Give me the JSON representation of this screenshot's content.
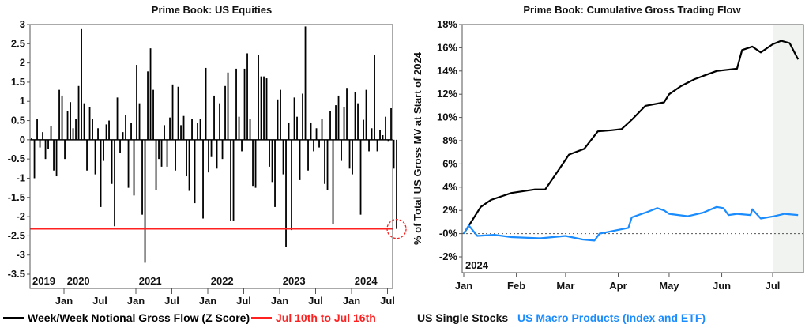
{
  "chart_data": [
    {
      "type": "bar",
      "title": "Prime Book: US Equities",
      "ylim": [
        -3.87,
        3
      ],
      "yticks": [
        "3",
        "2.5",
        "2",
        "1.5",
        "1",
        "0.5",
        "0",
        "-0.5",
        "-1",
        "-1.5",
        "-2",
        "-2.5",
        "-3",
        "-3.5"
      ],
      "ytick_values": [
        3,
        2.5,
        2,
        1.5,
        1,
        0.5,
        0,
        -0.5,
        -1,
        -1.5,
        -2,
        -2.5,
        -3,
        -3.5
      ],
      "xticks": [
        "Jan",
        "Jul",
        "Jan",
        "Jul",
        "Jan",
        "Jul",
        "Jan",
        "Jul",
        "Jan",
        "Jul"
      ],
      "xtick_values": [
        2020,
        2020.5,
        2021,
        2021.5,
        2022,
        2022.5,
        2023,
        2023.5,
        2024,
        2024.5
      ],
      "year_labels": [
        "2019",
        "2020",
        "2021",
        "2022",
        "2023",
        "2024"
      ],
      "year_label_values": [
        2019.72,
        2020.2,
        2021.2,
        2022.2,
        2023.2,
        2024.2
      ],
      "x_start": 2019.55,
      "x_step_years": 0.03846,
      "values": [
        0.05,
        -1.0,
        0.55,
        -0.2,
        0.2,
        -0.5,
        -0.25,
        0.35,
        -0.8,
        -0.95,
        1.3,
        1.15,
        -0.5,
        0.75,
        0.98,
        0.3,
        0.55,
        1.4,
        2.88,
        0.95,
        -0.8,
        0.85,
        0.55,
        -0.9,
        0.3,
        -1.75,
        -0.55,
        0.4,
        0.5,
        -1.15,
        -2.25,
        1.1,
        -0.35,
        0.2,
        0.65,
        -1.25,
        0.44,
        -1.45,
        1.95,
        0.95,
        -1.95,
        -3.2,
        1.78,
        2.38,
        1.3,
        -1.3,
        -0.5,
        -0.7,
        0.38,
        -0.7,
        0.58,
        1.44,
        -0.8,
        1.38,
        0.38,
        0.62,
        -0.95,
        -1.33,
        0.55,
        -1.65,
        0.43,
        0.55,
        -2.05,
        1.87,
        -0.85,
        -0.45,
        1.15,
        -0.75,
        0.95,
        -0.5,
        1.4,
        1.75,
        -2.1,
        -2.1,
        1.85,
        0.6,
        -0.3,
        1.85,
        2.25,
        0.55,
        -1.2,
        -1.25,
        2.2,
        1.65,
        1.65,
        1.6,
        -0.7,
        -1.1,
        -1.75,
        1.05,
        1.3,
        -0.9,
        -2.8,
        0.45,
        -2.35,
        1.1,
        0.6,
        -1.05,
        1.2,
        2.95,
        -0.8,
        0.45,
        -0.3,
        0.3,
        -0.2,
        0.55,
        -1.15,
        -1.3,
        0.75,
        -2.2,
        0.9,
        1.15,
        -0.55,
        0.85,
        1.35,
        -0.75,
        -0.9,
        1.25,
        0.95,
        -1.95,
        0.52,
        1.3,
        -0.3,
        0.3,
        2.2,
        -0.3,
        0.25,
        0.12,
        0.6,
        -0.05,
        0.82,
        -0.75,
        -2.32
      ],
      "reference_line": {
        "name": "Jul 10th to Jul 16th",
        "value": -2.32,
        "color": "#ff2020"
      },
      "series_name": "Week/Week Notional Gross Flow (Z Score)",
      "bar_color": "#000000",
      "highlight": "dashed red circle on latest value",
      "grid": false,
      "legend": "bottom"
    },
    {
      "type": "line",
      "title": "Prime Book: Cumulative Gross Trading Flow",
      "ylabel": "% of Total US Gross MV at Start of 2024",
      "ylim": [
        -3.36,
        18
      ],
      "yticks": [
        "18%",
        "16%",
        "14%",
        "12%",
        "10%",
        "8%",
        "6%",
        "4%",
        "2%",
        "-0%",
        "-2%"
      ],
      "ytick_values": [
        18,
        16,
        14,
        12,
        10,
        8,
        6,
        4,
        2,
        0,
        -2
      ],
      "xticks": [
        "Jan",
        "Feb",
        "Mar",
        "Apr",
        "May",
        "Jun",
        "Jul"
      ],
      "xtick_dates": [
        "2024-01-01",
        "2024-02-01",
        "2024-03-01",
        "2024-04-01",
        "2024-05-01",
        "2024-06-01",
        "2024-07-01"
      ],
      "corner_label": "2024",
      "shaded_from": "2024-07-01",
      "zero_line": "dotted",
      "legend": "bottom",
      "series": [
        {
          "name": "US Single Stocks",
          "color": "#000000",
          "x": [
            "2024-01-01",
            "2024-01-11",
            "2024-01-17",
            "2024-01-29",
            "2024-02-12",
            "2024-02-18",
            "2024-02-26",
            "2024-03-03",
            "2024-03-12",
            "2024-03-20",
            "2024-03-28",
            "2024-04-03",
            "2024-04-09",
            "2024-04-17",
            "2024-04-28",
            "2024-05-01",
            "2024-05-08",
            "2024-05-16",
            "2024-05-29",
            "2024-06-10",
            "2024-06-13",
            "2024-06-19",
            "2024-06-24",
            "2024-07-01",
            "2024-07-06",
            "2024-07-11",
            "2024-07-16"
          ],
          "y": [
            0,
            2.3,
            2.9,
            3.5,
            3.8,
            3.8,
            5.5,
            6.8,
            7.3,
            8.8,
            8.9,
            9.0,
            9.8,
            11.0,
            11.3,
            12.0,
            12.7,
            13.3,
            14.0,
            14.2,
            15.8,
            16.1,
            15.6,
            16.3,
            16.6,
            16.4,
            15.0
          ]
        },
        {
          "name": "US Macro Products (Index and ETF)",
          "color": "#1a8cff",
          "x": [
            "2024-01-01",
            "2024-01-04",
            "2024-01-09",
            "2024-01-19",
            "2024-01-29",
            "2024-02-15",
            "2024-03-01",
            "2024-03-11",
            "2024-03-18",
            "2024-03-21",
            "2024-04-07",
            "2024-04-09",
            "2024-04-17",
            "2024-04-24",
            "2024-04-28",
            "2024-05-01",
            "2024-05-12",
            "2024-05-21",
            "2024-05-29",
            "2024-06-02",
            "2024-06-05",
            "2024-06-10",
            "2024-06-18",
            "2024-06-19",
            "2024-06-24",
            "2024-07-02",
            "2024-07-08",
            "2024-07-16"
          ],
          "y": [
            0,
            0.7,
            -0.2,
            -0.1,
            -0.3,
            -0.4,
            -0.2,
            -0.5,
            -0.6,
            0,
            0.5,
            1.4,
            1.8,
            2.2,
            2.0,
            1.7,
            1.5,
            1.8,
            2.3,
            2.2,
            1.6,
            1.7,
            1.6,
            2.1,
            1.3,
            1.5,
            1.7,
            1.6
          ]
        }
      ]
    }
  ]
}
